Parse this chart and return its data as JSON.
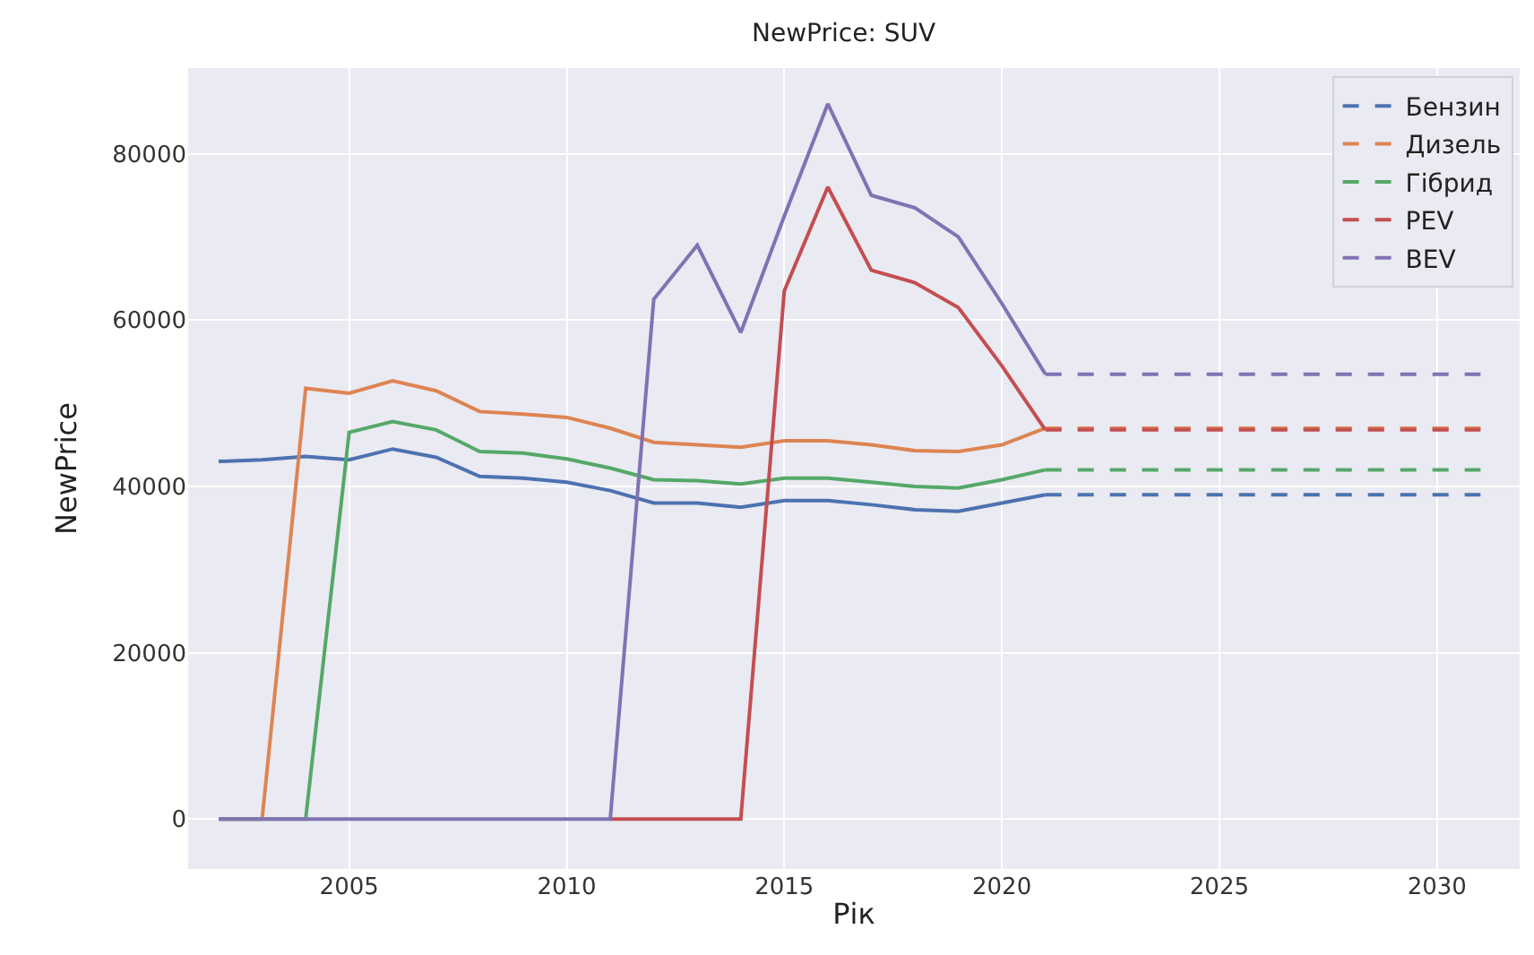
{
  "chart_data": {
    "type": "line",
    "title": "NewPrice: SUV",
    "xlabel": "Рік",
    "ylabel": "NewPrice",
    "xlim": [
      2001.3,
      2031.9
    ],
    "xticks": [
      2005,
      2010,
      2015,
      2020,
      2025,
      2030
    ],
    "ylim": [
      -6000,
      90300
    ],
    "yticks": [
      0,
      20000,
      40000,
      60000,
      80000
    ],
    "grid": true,
    "legend": "top right",
    "marker": "none",
    "series": [
      {
        "color": "#4c72b0",
        "line_style": "solid",
        "x": [
          2002,
          2003,
          2004,
          2005,
          2006,
          2007,
          2008,
          2009,
          2010,
          2011,
          2012,
          2013,
          2014,
          2015,
          2016,
          2017,
          2018,
          2019,
          2020,
          2021
        ],
        "values": [
          43000,
          43200,
          43600,
          43200,
          44500,
          43500,
          41200,
          41000,
          40500,
          39500,
          38000,
          38000,
          37500,
          38300,
          38300,
          37800,
          37200,
          37000,
          38000,
          39000
        ]
      },
      {
        "color": "#dd8452",
        "line_style": "solid",
        "x": [
          2002,
          2003,
          2004,
          2005,
          2006,
          2007,
          2008,
          2009,
          2010,
          2011,
          2012,
          2013,
          2014,
          2015,
          2016,
          2017,
          2018,
          2019,
          2020,
          2021
        ],
        "values": [
          0,
          0,
          51800,
          51200,
          52700,
          51500,
          49000,
          48700,
          48300,
          47000,
          45300,
          45000,
          44700,
          45500,
          45500,
          45000,
          44300,
          44200,
          45000,
          47000
        ]
      },
      {
        "color": "#55a868",
        "line_style": "solid",
        "x": [
          2002,
          2003,
          2004,
          2005,
          2006,
          2007,
          2008,
          2009,
          2010,
          2011,
          2012,
          2013,
          2014,
          2015,
          2016,
          2017,
          2018,
          2019,
          2020,
          2021
        ],
        "values": [
          0,
          0,
          0,
          46500,
          47800,
          46800,
          44200,
          44000,
          43300,
          42200,
          40800,
          40700,
          40300,
          41000,
          41000,
          40500,
          40000,
          39800,
          40800,
          42000
        ]
      },
      {
        "color": "#c44e52",
        "line_style": "solid",
        "x": [
          2011,
          2012,
          2013,
          2014,
          2015,
          2016,
          2017,
          2018,
          2019,
          2020,
          2021
        ],
        "values": [
          0,
          0,
          0,
          0,
          63500,
          76000,
          66000,
          64500,
          61500,
          54500,
          46800
        ]
      },
      {
        "color": "#8172b3",
        "line_style": "solid",
        "x": [
          2002,
          2003,
          2004,
          2005,
          2006,
          2007,
          2008,
          2009,
          2010,
          2011,
          2012,
          2013,
          2014,
          2015,
          2016,
          2017,
          2018,
          2019,
          2020,
          2021
        ],
        "values": [
          0,
          0,
          0,
          0,
          0,
          0,
          0,
          0,
          0,
          0,
          62500,
          69000,
          58500,
          72500,
          86000,
          75000,
          73500,
          70000,
          62000,
          53500
        ]
      },
      {
        "name": "Бензин",
        "color": "#4c72b0",
        "line_style": "dashed",
        "x": [
          2021,
          2031
        ],
        "values": [
          39000,
          39000
        ]
      },
      {
        "name": "Дизель",
        "color": "#dd8452",
        "line_style": "dashed",
        "x": [
          2021,
          2031
        ],
        "values": [
          47000,
          47000
        ]
      },
      {
        "name": "Гібрид",
        "color": "#55a868",
        "line_style": "dashed",
        "x": [
          2021,
          2031
        ],
        "values": [
          42000,
          42000
        ]
      },
      {
        "name": "PEV",
        "color": "#c44e52",
        "line_style": "dashed",
        "x": [
          2021,
          2031
        ],
        "values": [
          46800,
          46800
        ]
      },
      {
        "name": "BEV",
        "color": "#8172b3",
        "line_style": "dashed",
        "x": [
          2021,
          2031
        ],
        "values": [
          53500,
          53500
        ]
      }
    ]
  }
}
